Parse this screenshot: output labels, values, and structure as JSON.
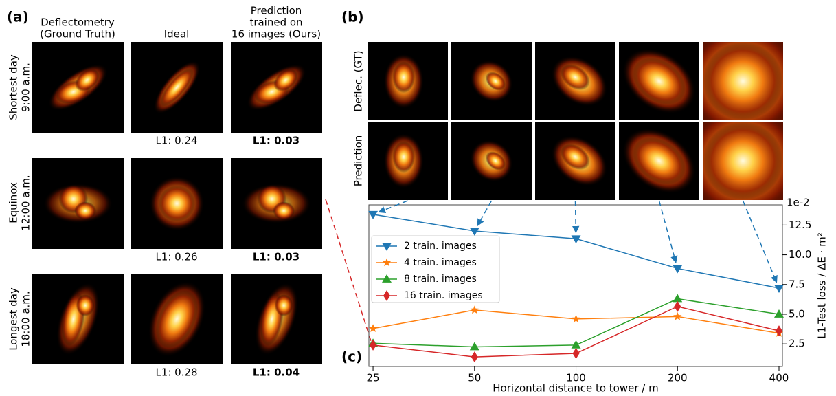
{
  "panel_a": {
    "label": "(a)",
    "columns": [
      [
        "Deflectometry",
        "(Ground Truth)"
      ],
      [
        "Ideal"
      ],
      [
        "Prediction",
        "trained on",
        "16 images (Ours)"
      ]
    ],
    "rows": [
      {
        "label": [
          "Shortest day",
          "9:00 a.m."
        ],
        "l1_ideal": "L1: 0.24",
        "l1_ours": "L1: 0.03"
      },
      {
        "label": [
          "Equinox",
          "12:00 a.m."
        ],
        "l1_ideal": "L1: 0.26",
        "l1_ours": "L1: 0.03"
      },
      {
        "label": [
          "Longest day",
          "18:00 a.m."
        ],
        "l1_ideal": "L1: 0.28",
        "l1_ours": "L1: 0.04"
      }
    ]
  },
  "panel_b": {
    "label": "(b)",
    "rows": [
      "Deflec. (GT)",
      "Prediction"
    ]
  },
  "panel_c": {
    "label": "(c)"
  },
  "chart_data": {
    "type": "line",
    "x_label": "Horizontal distance to tower / m",
    "y_label": "L1-Test loss / ΔE · m²",
    "y_offset_label": "1e-2",
    "x": [
      25,
      50,
      100,
      200,
      400
    ],
    "xscale": "log",
    "xlim": [
      24.3,
      409.5
    ],
    "xticks": [
      25,
      50,
      100,
      200,
      400
    ],
    "ylim": [
      0.6,
      14.2
    ],
    "yticks": [
      2.5,
      {
        "value": 5,
        "label": "5.0"
      },
      7.5,
      {
        "value": 10,
        "label": "10.0"
      },
      12.5
    ],
    "y_axis_side": "right",
    "grid": false,
    "legend": "upper left",
    "series": [
      {
        "name": "2 train. images",
        "color": "#1f77b4",
        "marker": "triangle-down",
        "values": [
          13.4,
          12.0,
          11.35,
          8.85,
          7.2
        ]
      },
      {
        "name": "4 train. images",
        "color": "#ff7f0e",
        "marker": "star",
        "values": [
          3.8,
          5.35,
          4.6,
          4.8,
          3.4
        ]
      },
      {
        "name": "8 train. images",
        "color": "#2ca02c",
        "marker": "triangle-up",
        "values": [
          2.55,
          2.25,
          2.4,
          6.3,
          5.0
        ]
      },
      {
        "name": "16 train. images",
        "color": "#d62728",
        "marker": "diamond",
        "values": [
          2.4,
          1.4,
          1.7,
          5.65,
          3.6
        ]
      }
    ]
  }
}
